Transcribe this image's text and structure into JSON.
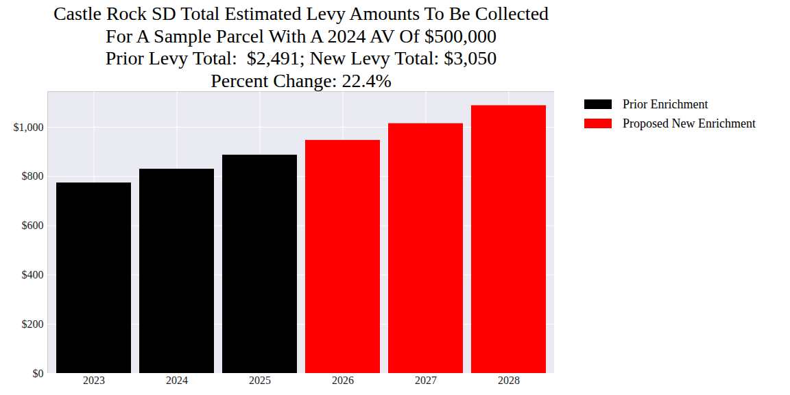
{
  "chart_data": {
    "type": "bar",
    "title": "Castle Rock SD Total Estimated Levy Amounts To Be Collected\nFor A Sample Parcel With A 2024 AV Of $500,000\nPrior Levy Total:  $2,491; New Levy Total: $3,050\nPercent Change: 22.4%",
    "categories": [
      "2023",
      "2024",
      "2025",
      "2026",
      "2027",
      "2028"
    ],
    "series": [
      {
        "name": "Prior Enrichment",
        "color": "#000000",
        "values": [
          774,
          830,
          887,
          null,
          null,
          null
        ]
      },
      {
        "name": "Proposed New Enrichment",
        "color": "#ff0000",
        "values": [
          null,
          null,
          null,
          947,
          1015,
          1088
        ]
      }
    ],
    "ylim": [
      0,
      1145
    ],
    "yticks": [
      {
        "value": 0,
        "label": "$0"
      },
      {
        "value": 200,
        "label": "$200"
      },
      {
        "value": 400,
        "label": "$400"
      },
      {
        "value": 600,
        "label": "$600"
      },
      {
        "value": 800,
        "label": "$800"
      },
      {
        "value": 1000,
        "label": "$1,000"
      }
    ],
    "grid": true,
    "legend": "right"
  }
}
